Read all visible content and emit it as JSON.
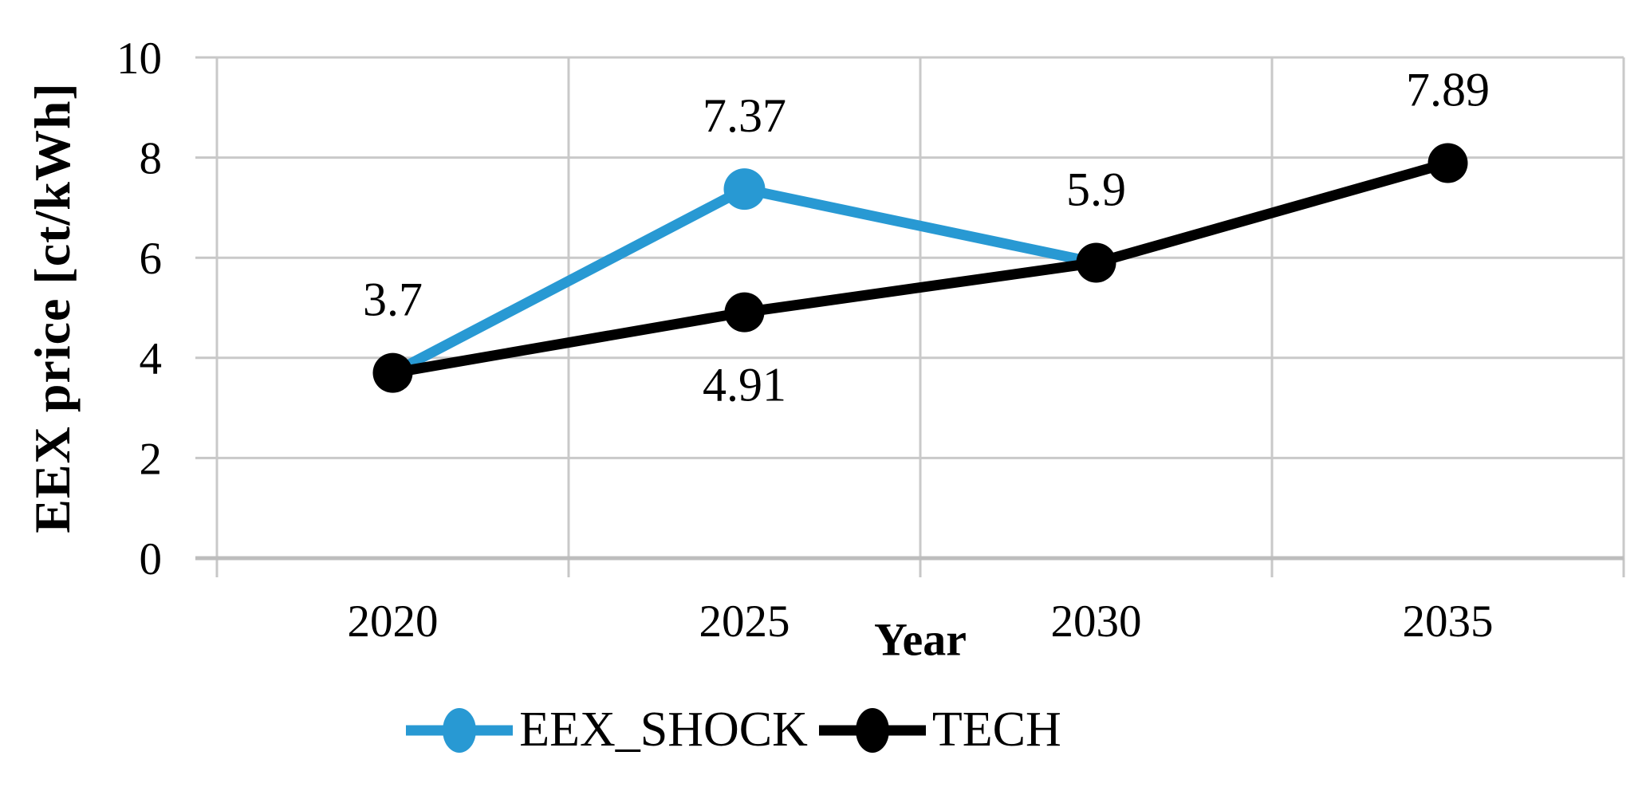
{
  "background": "#ffffff",
  "colors": {
    "gridline": "#c9c9c9",
    "axis_line": "#bdbdbd",
    "tick": "#c7c7c7",
    "text": "#000000"
  },
  "chart_data": {
    "type": "line",
    "title": "",
    "xlabel": "Year",
    "ylabel": "EEX price [ct/kWh]",
    "x_categories": [
      "2020",
      "2025",
      "2030",
      "2035"
    ],
    "ylim": [
      0,
      10
    ],
    "yticks": [
      0,
      2,
      4,
      6,
      8,
      10
    ],
    "grid": true,
    "legend_position": "bottom",
    "series": [
      {
        "name": "EEX_SHOCK",
        "color": "#2899d3",
        "x": [
          "2020",
          "2025",
          "2030"
        ],
        "values": [
          3.7,
          7.37,
          5.9
        ],
        "marker_points": [
          "2025"
        ]
      },
      {
        "name": "TECH",
        "color": "#000000",
        "x": [
          "2020",
          "2025",
          "2030",
          "2035"
        ],
        "values": [
          3.7,
          4.91,
          5.9,
          7.89
        ],
        "marker_points": [
          "2020",
          "2025",
          "2030",
          "2035"
        ]
      }
    ],
    "data_labels": [
      {
        "text": "3.7",
        "category": "2020",
        "value": 3.7,
        "placement": "above"
      },
      {
        "text": "7.37",
        "category": "2025",
        "value": 7.37,
        "placement": "above"
      },
      {
        "text": "4.91",
        "category": "2025",
        "value": 4.91,
        "placement": "below"
      },
      {
        "text": "5.9",
        "category": "2030",
        "value": 5.9,
        "placement": "above"
      },
      {
        "text": "7.89",
        "category": "2035",
        "value": 7.89,
        "placement": "above"
      }
    ]
  }
}
